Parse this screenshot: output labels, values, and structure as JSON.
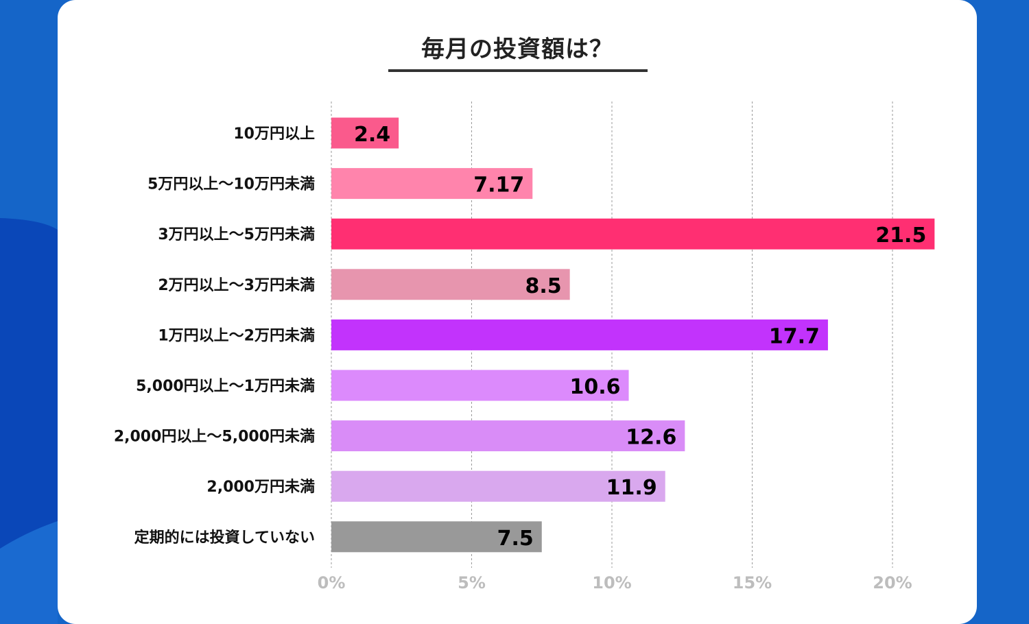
{
  "chart_data": {
    "type": "bar",
    "orientation": "horizontal",
    "title": "毎月の投資額は？",
    "categories": [
      "10万円以上",
      "5万円以上～10万円未満",
      "3万円以上～5万円未満",
      "2万円以上～3万円未満",
      "1万円以上～2万円未満",
      "5,000円以上～1万円未満",
      "2,000円以上～5,000円未満",
      "2,000万円未満",
      "定期的には投資していない"
    ],
    "values": [
      2.4,
      7.17,
      21.5,
      8.5,
      17.7,
      10.6,
      12.6,
      11.9,
      7.5
    ],
    "value_labels": [
      "2.4",
      "7.17",
      "21.5",
      "8.5",
      "17.7",
      "10.6",
      "12.6",
      "11.9",
      "7.5"
    ],
    "colors": [
      "#fa5a8c",
      "#ff84ac",
      "#ff2f72",
      "#e795ae",
      "#c233fc",
      "#dc8afc",
      "#d98cf7",
      "#d9a8ee",
      "#999999"
    ],
    "x_ticks": [
      0,
      5,
      10,
      15,
      20
    ],
    "x_tick_labels": [
      "0%",
      "5%",
      "10%",
      "15%",
      "20%"
    ],
    "xlim": [
      0,
      22
    ],
    "grid": "vertical dashed",
    "legend": "none"
  }
}
